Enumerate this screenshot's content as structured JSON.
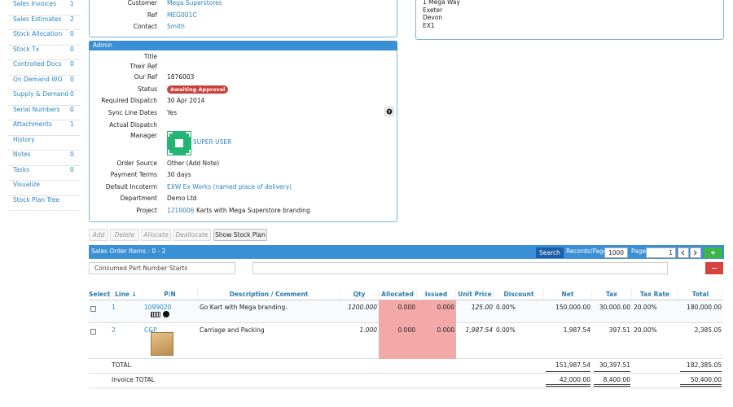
{
  "sidebar": [
    {
      "label": "Sales Invoices",
      "count": "1"
    },
    {
      "label": "Sales Estimates",
      "count": "2"
    },
    {
      "label": "Stock Allocation",
      "count": "0"
    },
    {
      "label": "Stock Tx",
      "count": "0"
    },
    {
      "label": "Controlled Docs",
      "count": "0"
    },
    {
      "label": "On Demand WO",
      "count": "0"
    },
    {
      "label": "Supply & Demand",
      "count": "0"
    },
    {
      "label": "Serial Numbers",
      "count": "0"
    },
    {
      "label": "Attachments",
      "count": "1"
    },
    {
      "label": "History"
    },
    {
      "label": "Notes",
      "count": "0"
    },
    {
      "label": "Tasks",
      "count": "0"
    },
    {
      "label": "Visualize"
    },
    {
      "label": "Stock Plan Tree"
    }
  ],
  "customer": {
    "fields": [
      {
        "label": "Customer",
        "value": "Mega Superstores"
      },
      {
        "label": "Ref",
        "value": "MEG001C"
      },
      {
        "label": "Contact",
        "value": "Smith"
      }
    ]
  },
  "address": {
    "lines": [
      "1 Mega Way",
      "Exeter",
      "Devon",
      "EX1"
    ]
  },
  "admin": {
    "title": "Admin",
    "fields": [
      {
        "label": "Title"
      },
      {
        "label": "Their Ref"
      },
      {
        "label": "Our Ref",
        "value": "1876003"
      },
      {
        "label": "Status",
        "value": "Awaiting Approval"
      },
      {
        "label": "Required Dispatch",
        "value": "30 Apr 2014"
      },
      {
        "label": "Sync Line Dates",
        "value": "Yes"
      },
      {
        "label": "Actual Dispatch"
      },
      {
        "label": "Manager",
        "value": "SUPER USER"
      },
      {
        "label": "Order Source",
        "value": "Other (Add Note)"
      },
      {
        "label": "Payment Terms",
        "value": "30 days"
      },
      {
        "label": "Default Incoterm",
        "value": "EXW Ex Works (named place of delivery)"
      },
      {
        "label": "Department",
        "value": "Demo Ltd"
      },
      {
        "label": "Project",
        "value": "1210006",
        "note": "Karts with Mega Superstore branding"
      }
    ]
  },
  "buttons": [
    "Add",
    "Delete",
    "Allocate",
    "Deallocate",
    "Show Stock Plan"
  ],
  "toolbar": {
    "title": "Sales Order Items : 0 - 2",
    "search": "Search",
    "records_label": "Records/Page",
    "records_value": "1000",
    "page_label": "Page",
    "page_value": "1"
  },
  "filter": {
    "placeholder": "Consumed Part Number Starts"
  },
  "table": {
    "columns": [
      "Select",
      "Line ↓",
      "P/N",
      "Description / Comment",
      "Qty",
      "Allocated",
      "Issued",
      "Unit Price",
      "Discount",
      "Net",
      "Tax",
      "Tax Rate",
      "Total"
    ],
    "rows": [
      [
        "",
        "1",
        "1099020",
        "Go Kart with Mega branding.",
        "1200.000",
        "0.000",
        "0.000",
        "125.00",
        "0.00%",
        "150,000.00",
        "30,000.00",
        "20.00%",
        "180,000.00"
      ],
      [
        "",
        "2",
        "C&P",
        "Carriage and Packing",
        "1.000",
        "0.000",
        "0.000",
        "1,987.54",
        "0.00%",
        "1,987.54",
        "397.51",
        "20.00%",
        "2,385.05"
      ]
    ],
    "totals": [
      {
        "label": "TOTAL",
        "net": "151,987.54",
        "tax": "30,397.51",
        "total": "182,385.05"
      },
      {
        "label": "Invoice TOTAL",
        "net": "42,000.00",
        "tax": "8,400.00",
        "total": "50,400.00"
      }
    ]
  }
}
